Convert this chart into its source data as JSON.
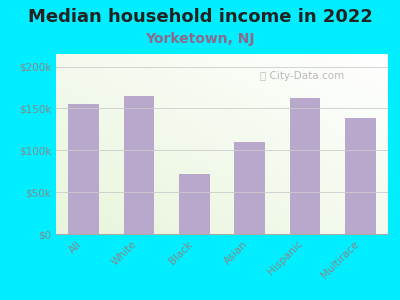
{
  "title": "Median household income in 2022",
  "subtitle": "Yorketown, NJ",
  "categories": [
    "All",
    "White",
    "Black",
    "Asian",
    "Hispanic",
    "Multirace"
  ],
  "values": [
    155000,
    165000,
    72000,
    110000,
    162000,
    138000
  ],
  "bar_color": "#b8a8cc",
  "title_fontsize": 13,
  "title_color": "#222222",
  "subtitle_fontsize": 10,
  "subtitle_color": "#8b6a8b",
  "background_color": "#00eeff",
  "yticks": [
    0,
    50000,
    100000,
    150000,
    200000
  ],
  "ytick_labels": [
    "$0",
    "$50k",
    "$100k",
    "$150k",
    "$200k"
  ],
  "ylim": [
    0,
    215000
  ],
  "watermark": "City-Data.com",
  "tick_color": "#888888",
  "spine_color": "#aaaaaa",
  "grid_color": "#cccccc"
}
